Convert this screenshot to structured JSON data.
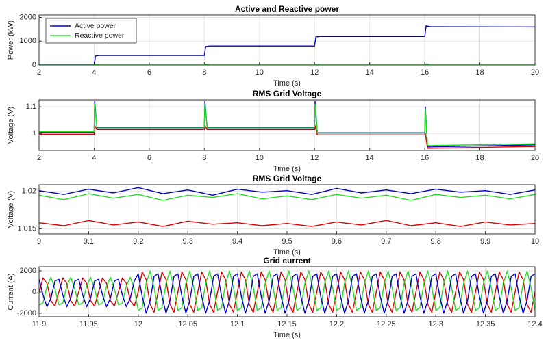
{
  "chart_data": [
    {
      "type": "line",
      "title": "Active and Reactive power",
      "xlabel": "Time (s)",
      "ylabel": "Power (kW)",
      "xlim": [
        2,
        20
      ],
      "xticks": [
        2,
        4,
        6,
        8,
        10,
        12,
        14,
        16,
        18,
        20
      ],
      "ylim": [
        0,
        2100
      ],
      "yticks": [
        0,
        1000,
        2000
      ],
      "grid": true,
      "legend": "upper left",
      "x": [
        2,
        4,
        4.05,
        4.2,
        8,
        8.05,
        8.2,
        12,
        12.05,
        12.2,
        16,
        16.05,
        16.2,
        20
      ],
      "series": [
        {
          "name": "Active power",
          "color": "#0000cc",
          "values": [
            0,
            0,
            380,
            400,
            400,
            780,
            800,
            800,
            1180,
            1200,
            1200,
            1650,
            1610,
            1600
          ]
        },
        {
          "name": "Reactive power",
          "color": "#22dd22",
          "values": [
            0,
            0,
            40,
            0,
            0,
            40,
            0,
            0,
            40,
            0,
            0,
            40,
            0,
            0
          ]
        }
      ]
    },
    {
      "type": "line",
      "title": "RMS Grid Voltage",
      "xlabel": "Time (s)",
      "ylabel": "Voltage (V)",
      "xlim": [
        2,
        20
      ],
      "xticks": [
        2,
        4,
        6,
        8,
        10,
        12,
        14,
        16,
        18,
        20
      ],
      "ylim": [
        0.937,
        1.126
      ],
      "yticks": [
        1,
        1.1
      ],
      "grid": true,
      "x": [
        2,
        4,
        4.02,
        4.1,
        8,
        8.02,
        8.1,
        12,
        12.02,
        12.1,
        16,
        16.02,
        16.1,
        20
      ],
      "series": [
        {
          "color": "#0000cc",
          "values": [
            1.005,
            1.005,
            1.12,
            1.022,
            1.022,
            1.12,
            1.022,
            1.022,
            1.12,
            1.002,
            1.002,
            1.1,
            0.95,
            0.958
          ]
        },
        {
          "color": "#dd0000",
          "values": [
            0.997,
            0.997,
            1.03,
            1.015,
            1.015,
            1.03,
            1.015,
            1.015,
            1.03,
            0.995,
            0.995,
            1.0,
            0.945,
            0.952
          ]
        },
        {
          "color": "#22dd22",
          "values": [
            1.007,
            1.007,
            1.11,
            1.024,
            1.024,
            1.11,
            1.024,
            1.024,
            1.11,
            1.004,
            1.004,
            1.09,
            0.955,
            0.962
          ]
        }
      ]
    },
    {
      "type": "line",
      "title": "RMS Grid Voltage",
      "xlabel": "Time (s)",
      "ylabel": "Voltage (V)",
      "xlim": [
        9,
        10
      ],
      "xticks": [
        9,
        9.1,
        9.2,
        9.3,
        9.4,
        9.5,
        9.6,
        9.7,
        9.8,
        9.9,
        10
      ],
      "ylim": [
        1.0143,
        1.0209
      ],
      "yticks": [
        1.015,
        1.02
      ],
      "grid": true,
      "x": [
        9,
        9.05,
        9.1,
        9.15,
        9.2,
        9.25,
        9.3,
        9.35,
        9.4,
        9.45,
        9.5,
        9.55,
        9.6,
        9.65,
        9.7,
        9.75,
        9.8,
        9.85,
        9.9,
        9.95,
        10
      ],
      "series": [
        {
          "color": "#0000cc",
          "values": [
            1.0201,
            1.0196,
            1.0203,
            1.0198,
            1.0205,
            1.0197,
            1.0202,
            1.0195,
            1.0203,
            1.0199,
            1.0201,
            1.0196,
            1.0204,
            1.0198,
            1.0202,
            1.0197,
            1.0203,
            1.0199,
            1.0201,
            1.0196,
            1.0202
          ]
        },
        {
          "color": "#22dd22",
          "values": [
            1.0195,
            1.0189,
            1.0197,
            1.0191,
            1.0196,
            1.0188,
            1.0195,
            1.0192,
            1.0197,
            1.019,
            1.0194,
            1.0189,
            1.0196,
            1.0191,
            1.0195,
            1.0188,
            1.0196,
            1.0192,
            1.0195,
            1.019,
            1.0196
          ]
        },
        {
          "color": "#dd0000",
          "values": [
            1.0158,
            1.0154,
            1.0161,
            1.0155,
            1.0159,
            1.0153,
            1.016,
            1.0156,
            1.0158,
            1.0154,
            1.0157,
            1.0153,
            1.0159,
            1.0155,
            1.0161,
            1.0154,
            1.0158,
            1.0153,
            1.0159,
            1.0155,
            1.0157
          ]
        }
      ]
    },
    {
      "type": "line",
      "title": "Grid current",
      "xlabel": "Time (s)",
      "ylabel": "Current (A)",
      "xlim": [
        11.9,
        12.4
      ],
      "xticks": [
        11.9,
        11.95,
        12,
        12.05,
        12.1,
        12.15,
        12.2,
        12.25,
        12.3,
        12.35,
        12.4
      ],
      "ylim": [
        -2330,
        2390
      ],
      "yticks": [
        -2000,
        0,
        2000
      ],
      "grid": true,
      "x": [
        11.9,
        11.904,
        11.908,
        11.912,
        11.916,
        11.92,
        11.924,
        11.928,
        11.932,
        11.936,
        11.94,
        11.944,
        11.948,
        11.952,
        11.956,
        11.96,
        11.964,
        11.968,
        11.972,
        11.976,
        11.98,
        11.984,
        11.988,
        11.992,
        11.996,
        12,
        12.004,
        12.008,
        12.012,
        12.016,
        12.02,
        12.024,
        12.028,
        12.032,
        12.036,
        12.04,
        12.044,
        12.048,
        12.052,
        12.056,
        12.06,
        12.064,
        12.068,
        12.072,
        12.076,
        12.08,
        12.084,
        12.088,
        12.092,
        12.096,
        12.1,
        12.104,
        12.108,
        12.112,
        12.116,
        12.12,
        12.124,
        12.128,
        12.132,
        12.136,
        12.14,
        12.144,
        12.148,
        12.152,
        12.156,
        12.16,
        12.164,
        12.168,
        12.172,
        12.176,
        12.18,
        12.184,
        12.188,
        12.192,
        12.196,
        12.2,
        12.204,
        12.208,
        12.212,
        12.216,
        12.22,
        12.224,
        12.228,
        12.232,
        12.236,
        12.24,
        12.244,
        12.248,
        12.252,
        12.256,
        12.26,
        12.264,
        12.268,
        12.272,
        12.276,
        12.28,
        12.284,
        12.288,
        12.292,
        12.296,
        12.3,
        12.304,
        12.308,
        12.312,
        12.316,
        12.32,
        12.324,
        12.328,
        12.332,
        12.336,
        12.34,
        12.344,
        12.348,
        12.352,
        12.356,
        12.36,
        12.364,
        12.368,
        12.372,
        12.376,
        12.38,
        12.384,
        12.388,
        12.392,
        12.396,
        12.4
      ],
      "series": [
        {
          "color": "#dd0000",
          "values": [
            0,
            1331,
            823,
            -823,
            -1331,
            0,
            1331,
            823,
            -823,
            -1331,
            0,
            1331,
            823,
            -823,
            -1331,
            0,
            1331,
            823,
            -823,
            -1331,
            0,
            1331,
            823,
            -823,
            -1331,
            0,
            1902,
            1176,
            -1176,
            -1902,
            0,
            1902,
            1176,
            -1176,
            -1902,
            0,
            1902,
            1176,
            -1176,
            -1902,
            0,
            1902,
            1176,
            -1176,
            -1902,
            0,
            1902,
            1176,
            -1176,
            -1902,
            0,
            1902,
            1176,
            -1176,
            -1902,
            0,
            1902,
            1176,
            -1176,
            -1902,
            0,
            1902,
            1176,
            -1176,
            -1902,
            0,
            1902,
            1176,
            -1176,
            -1902,
            0,
            1902,
            1176,
            -1176,
            -1902,
            0,
            1902,
            1176,
            -1176,
            -1902,
            0,
            1902,
            1176,
            -1176,
            -1902,
            0,
            1902,
            1176,
            -1176,
            -1902,
            0,
            1902,
            1176,
            -1176,
            -1902,
            0,
            1902,
            1176,
            -1176,
            -1902,
            0,
            1902,
            1176,
            -1176,
            -1902,
            0,
            1902,
            1176,
            -1176,
            -1902,
            0,
            1902,
            1176,
            -1176,
            -1902,
            0,
            1902,
            1176,
            -1176,
            -1902,
            0,
            1902,
            1176,
            -1176,
            -1902,
            0
          ]
        },
        {
          "color": "#22dd22",
          "values": [
            -1212,
            -1040,
            570,
            1393,
            291,
            -1212,
            -1040,
            570,
            1393,
            291,
            -1212,
            -1040,
            570,
            1393,
            291,
            -1212,
            -1040,
            570,
            1393,
            291,
            -1212,
            -1040,
            570,
            1393,
            291,
            -1732,
            -1486,
            814,
            1990,
            416,
            -1732,
            -1486,
            814,
            1990,
            416,
            -1732,
            -1486,
            814,
            1990,
            416,
            -1732,
            -1486,
            814,
            1990,
            416,
            -1732,
            -1486,
            814,
            1990,
            416,
            -1732,
            -1486,
            814,
            1990,
            416,
            -1732,
            -1486,
            814,
            1990,
            416,
            -1732,
            -1486,
            814,
            1990,
            416,
            -1732,
            -1486,
            814,
            1990,
            416,
            -1732,
            -1486,
            814,
            1990,
            416,
            -1732,
            -1486,
            814,
            1990,
            416,
            -1732,
            -1486,
            814,
            1990,
            416,
            -1732,
            -1486,
            814,
            1990,
            416,
            -1732,
            -1486,
            814,
            1990,
            416,
            -1732,
            -1486,
            814,
            1990,
            416,
            -1732,
            -1486,
            814,
            1990,
            416,
            -1732,
            -1486,
            814,
            1990,
            416,
            -1732,
            -1486,
            814,
            1990,
            416,
            -1732,
            -1486,
            814,
            1990,
            416,
            -1732,
            -1486,
            814,
            1990,
            416,
            -1732
          ]
        },
        {
          "color": "#0000cc",
          "values": [
            1212,
            -291,
            -1393,
            -570,
            1040,
            1212,
            -291,
            -1393,
            -570,
            1040,
            1212,
            -291,
            -1393,
            -570,
            1040,
            1212,
            -291,
            -1393,
            -570,
            1040,
            1212,
            -291,
            -1393,
            -570,
            1040,
            1732,
            -416,
            -1990,
            -814,
            1486,
            1732,
            -416,
            -1990,
            -814,
            1486,
            1732,
            -416,
            -1990,
            -814,
            1486,
            1732,
            -416,
            -1990,
            -814,
            1486,
            1732,
            -416,
            -1990,
            -814,
            1486,
            1732,
            -416,
            -1990,
            -814,
            1486,
            1732,
            -416,
            -1990,
            -814,
            1486,
            1732,
            -416,
            -1990,
            -814,
            1486,
            1732,
            -416,
            -1990,
            -814,
            1486,
            1732,
            -416,
            -1990,
            -814,
            1486,
            1732,
            -416,
            -1990,
            -814,
            1486,
            1732,
            -416,
            -1990,
            -814,
            1486,
            1732,
            -416,
            -1990,
            -814,
            1486,
            1732,
            -416,
            -1990,
            -814,
            1486,
            1732,
            -416,
            -1990,
            -814,
            1486,
            1732,
            -416,
            -1990,
            -814,
            1486,
            1732,
            -416,
            -1990,
            -814,
            1486,
            1732,
            -416,
            -1990,
            -814,
            1486,
            1732,
            -416,
            -1990,
            -814,
            1486,
            1732,
            -416,
            -1990,
            -814,
            1486,
            1732
          ]
        }
      ]
    }
  ]
}
